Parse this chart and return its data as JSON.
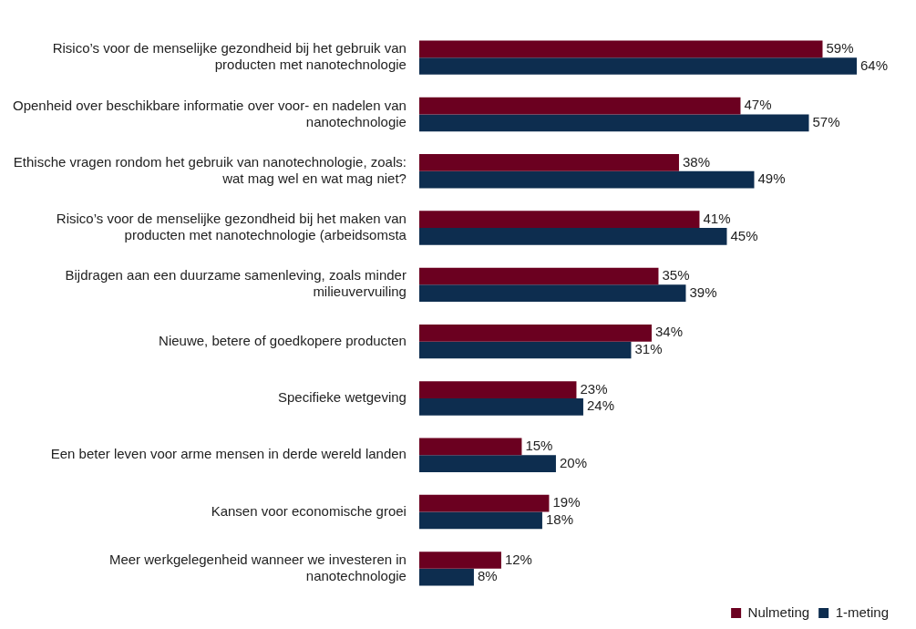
{
  "chart_data": {
    "type": "bar",
    "orientation": "horizontal",
    "categories": [
      "Risico’s voor de menselijke gezondheid bij het gebruik van producten met nanotechnologie",
      "Openheid over beschikbare informatie over voor- en nadelen van nanotechnologie",
      "Ethische vragen rondom het gebruik van nanotechnologie, zoals: wat mag wel en wat mag niet?",
      "Risico’s voor de menselijke gezondheid bij het maken van producten met nanotechnologie (arbeidsomsta",
      "Bijdragen aan een duurzame samenleving, zoals minder milieuvervuiling",
      "Nieuwe, betere of goedkopere producten",
      "Specifieke wetgeving",
      "Een beter leven voor arme mensen in derde wereld landen",
      "Kansen voor economische groei",
      "Meer werkgelegenheid wanneer we investeren in nanotechnologie"
    ],
    "series": [
      {
        "name": "Nulmeting",
        "color": "#6b0020",
        "values": [
          59,
          47,
          38,
          41,
          35,
          34,
          23,
          15,
          19,
          12
        ],
        "value_labels": [
          "59%",
          "47%",
          "38%",
          "41%",
          "35%",
          "34%",
          "23%",
          "15%",
          "19%",
          "12%"
        ]
      },
      {
        "name": "1-meting",
        "color": "#0d2d4f",
        "values": [
          64,
          57,
          49,
          45,
          39,
          31,
          24,
          20,
          18,
          8
        ],
        "value_labels": [
          "64%",
          "57%",
          "49%",
          "45%",
          "39%",
          "31%",
          "24%",
          "20%",
          "18%",
          "8%"
        ]
      }
    ],
    "grid": false,
    "legend": "bottom right",
    "tick_labels": "y"
  }
}
